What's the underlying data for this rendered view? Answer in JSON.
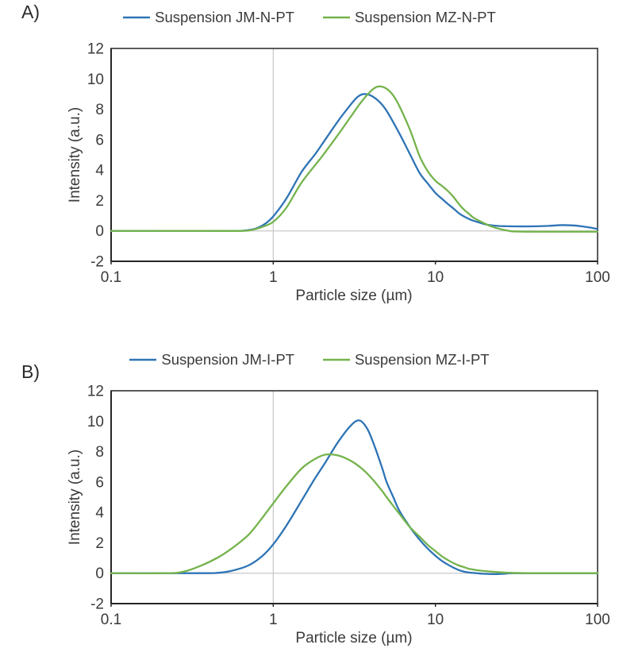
{
  "figure": {
    "background": "#ffffff"
  },
  "colors": {
    "series_blue": "#2e74b5",
    "series_green": "#74b34c",
    "plot_border": "#333333",
    "axis": "#262626",
    "gridline": "#c9c9c9",
    "text": "#3a3a3a"
  },
  "chart_data": [
    {
      "type": "line",
      "panel_label": "A)",
      "title": "",
      "xlabel": "Particle size (µm)",
      "ylabel": "Intensity (a.u.)",
      "x_scale": "log",
      "xlim": [
        0.1,
        100
      ],
      "ylim": [
        -2,
        12
      ],
      "x_ticks": [
        0.1,
        1,
        10,
        100
      ],
      "y_ticks": [
        -2,
        0,
        2,
        4,
        6,
        8,
        10,
        12
      ],
      "gridlines": {
        "vertical_x": 1,
        "horizontal_y": 0
      },
      "legend_position": "top",
      "series": [
        {
          "name": "Suspension JM-N-PT",
          "color": "#2e74b5",
          "peak": {
            "x": 3.6,
            "y": 9.0
          },
          "points": [
            [
              0.1,
              0
            ],
            [
              0.4,
              0
            ],
            [
              0.6,
              0
            ],
            [
              0.7,
              0.05
            ],
            [
              0.8,
              0.2
            ],
            [
              0.9,
              0.5
            ],
            [
              1,
              0.95
            ],
            [
              1.2,
              2.1
            ],
            [
              1.5,
              3.9
            ],
            [
              1.8,
              5.0
            ],
            [
              2,
              5.7
            ],
            [
              2.5,
              7.2
            ],
            [
              3,
              8.3
            ],
            [
              3.3,
              8.8
            ],
            [
              3.6,
              9.0
            ],
            [
              4,
              8.9
            ],
            [
              4.5,
              8.5
            ],
            [
              5,
              7.9
            ],
            [
              6,
              6.4
            ],
            [
              7,
              5.0
            ],
            [
              8,
              3.8
            ],
            [
              9,
              3.1
            ],
            [
              10,
              2.5
            ],
            [
              11,
              2.1
            ],
            [
              12,
              1.75
            ],
            [
              13,
              1.45
            ],
            [
              14,
              1.15
            ],
            [
              15,
              0.95
            ],
            [
              16,
              0.8
            ],
            [
              17,
              0.68
            ],
            [
              18,
              0.6
            ],
            [
              20,
              0.45
            ],
            [
              22,
              0.37
            ],
            [
              25,
              0.32
            ],
            [
              30,
              0.3
            ],
            [
              40,
              0.3
            ],
            [
              50,
              0.33
            ],
            [
              60,
              0.38
            ],
            [
              70,
              0.36
            ],
            [
              80,
              0.3
            ],
            [
              90,
              0.22
            ],
            [
              100,
              0.12
            ]
          ]
        },
        {
          "name": "Suspension MZ-N-PT",
          "color": "#74b34c",
          "peak": {
            "x": 4.4,
            "y": 9.5
          },
          "points": [
            [
              0.1,
              0
            ],
            [
              0.4,
              0
            ],
            [
              0.65,
              0
            ],
            [
              0.75,
              0.08
            ],
            [
              0.85,
              0.25
            ],
            [
              1,
              0.6
            ],
            [
              1.2,
              1.5
            ],
            [
              1.5,
              3.2
            ],
            [
              2,
              4.9
            ],
            [
              2.5,
              6.3
            ],
            [
              3,
              7.5
            ],
            [
              3.5,
              8.5
            ],
            [
              4,
              9.2
            ],
            [
              4.3,
              9.45
            ],
            [
              4.6,
              9.5
            ],
            [
              5,
              9.35
            ],
            [
              5.5,
              8.9
            ],
            [
              6,
              8.2
            ],
            [
              7,
              6.6
            ],
            [
              8,
              4.9
            ],
            [
              9,
              3.9
            ],
            [
              10,
              3.3
            ],
            [
              11,
              2.95
            ],
            [
              12,
              2.6
            ],
            [
              13,
              2.2
            ],
            [
              14,
              1.75
            ],
            [
              15,
              1.4
            ],
            [
              16,
              1.15
            ],
            [
              17,
              0.9
            ],
            [
              18,
              0.75
            ],
            [
              20,
              0.5
            ],
            [
              22,
              0.3
            ],
            [
              25,
              0.12
            ],
            [
              28,
              0.02
            ],
            [
              30,
              -0.03
            ],
            [
              40,
              -0.05
            ],
            [
              60,
              -0.05
            ],
            [
              80,
              -0.05
            ],
            [
              100,
              -0.05
            ]
          ]
        }
      ]
    },
    {
      "type": "line",
      "panel_label": "B)",
      "title": "",
      "xlabel": "Particle size (µm)",
      "ylabel": "Intensity (a.u.)",
      "x_scale": "log",
      "xlim": [
        0.1,
        100
      ],
      "ylim": [
        -2,
        12
      ],
      "x_ticks": [
        0.1,
        1,
        10,
        100
      ],
      "y_ticks": [
        -2,
        0,
        2,
        4,
        6,
        8,
        10,
        12
      ],
      "gridlines": {
        "vertical_x": 1,
        "horizontal_y": 0
      },
      "legend_position": "top",
      "series": [
        {
          "name": "Suspension JM-I-PT",
          "color": "#2e74b5",
          "peak": {
            "x": 3.4,
            "y": 10.05
          },
          "points": [
            [
              0.1,
              0
            ],
            [
              0.35,
              0
            ],
            [
              0.45,
              0.02
            ],
            [
              0.55,
              0.15
            ],
            [
              0.7,
              0.5
            ],
            [
              0.85,
              1.1
            ],
            [
              1,
              1.9
            ],
            [
              1.2,
              3.1
            ],
            [
              1.5,
              4.8
            ],
            [
              1.8,
              6.2
            ],
            [
              2.1,
              7.3
            ],
            [
              2.5,
              8.6
            ],
            [
              3,
              9.7
            ],
            [
              3.4,
              10.05
            ],
            [
              3.8,
              9.5
            ],
            [
              4.2,
              8.4
            ],
            [
              4.7,
              6.9
            ],
            [
              5,
              6.0
            ],
            [
              5.5,
              5.0
            ],
            [
              6,
              4.1
            ],
            [
              7,
              3.0
            ],
            [
              8,
              2.2
            ],
            [
              9,
              1.6
            ],
            [
              10,
              1.15
            ],
            [
              11,
              0.8
            ],
            [
              12,
              0.55
            ],
            [
              13,
              0.35
            ],
            [
              14,
              0.2
            ],
            [
              15,
              0.1
            ],
            [
              16,
              0.05
            ],
            [
              18,
              0
            ],
            [
              20,
              -0.04
            ],
            [
              23,
              -0.06
            ],
            [
              27,
              -0.03
            ],
            [
              30,
              0
            ],
            [
              50,
              0
            ],
            [
              100,
              0
            ]
          ]
        },
        {
          "name": "Suspension MZ-I-PT",
          "color": "#74b34c",
          "peak": {
            "x": 2.2,
            "y": 7.8
          },
          "points": [
            [
              0.1,
              0
            ],
            [
              0.22,
              0
            ],
            [
              0.28,
              0.1
            ],
            [
              0.35,
              0.45
            ],
            [
              0.45,
              1.0
            ],
            [
              0.55,
              1.6
            ],
            [
              0.7,
              2.5
            ],
            [
              0.85,
              3.6
            ],
            [
              1,
              4.6
            ],
            [
              1.2,
              5.7
            ],
            [
              1.5,
              6.9
            ],
            [
              1.8,
              7.5
            ],
            [
              2.1,
              7.8
            ],
            [
              2.5,
              7.75
            ],
            [
              3,
              7.4
            ],
            [
              3.5,
              6.9
            ],
            [
              4,
              6.3
            ],
            [
              4.7,
              5.4
            ],
            [
              5,
              5.0
            ],
            [
              6,
              3.9
            ],
            [
              7,
              3.0
            ],
            [
              8,
              2.4
            ],
            [
              9,
              1.85
            ],
            [
              10,
              1.45
            ],
            [
              11,
              1.1
            ],
            [
              12,
              0.85
            ],
            [
              13,
              0.65
            ],
            [
              14,
              0.5
            ],
            [
              15,
              0.4
            ],
            [
              16,
              0.3
            ],
            [
              18,
              0.2
            ],
            [
              20,
              0.14
            ],
            [
              25,
              0.06
            ],
            [
              30,
              0.02
            ],
            [
              40,
              0
            ],
            [
              60,
              0
            ],
            [
              100,
              0
            ]
          ]
        }
      ]
    }
  ]
}
